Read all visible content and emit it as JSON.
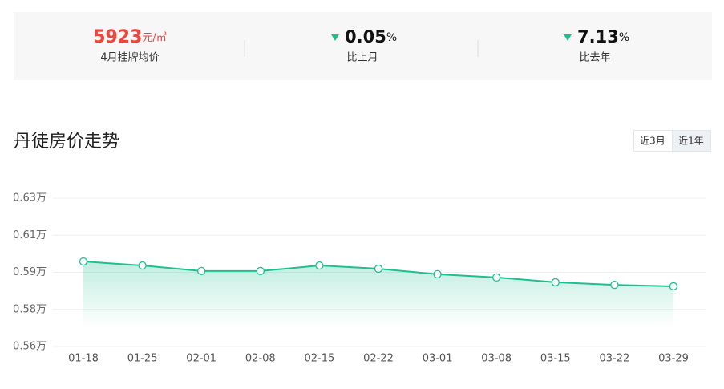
{
  "stats": [
    {
      "value": 5923,
      "unit": "元/㎡",
      "label": "4月挂牌均价"
    },
    {
      "value": 0.05,
      "unit": "%",
      "label": "比上月"
    },
    {
      "value": 7.13,
      "unit": "%",
      "label": "比去年"
    }
  ],
  "section_title": "丹徒房价走势",
  "range_buttons": [
    "近3月",
    "近1年"
  ],
  "chart_data": {
    "type": "line",
    "color": "#1cc08e",
    "grid": true,
    "categories": [
      "01-18",
      "01-25",
      "02-01",
      "02-08",
      "02-15",
      "02-22",
      "03-01",
      "03-08",
      "03-15",
      "03-22",
      "03-29"
    ],
    "values": [
      0.6001,
      0.5982,
      0.5956,
      0.5956,
      0.5982,
      0.5967,
      0.5941,
      0.5926,
      0.5903,
      0.5891,
      0.5884
    ],
    "ylim": [
      0.56,
      0.63
    ],
    "yticks": [
      {
        "value": 0.56,
        "label": "0.56万"
      },
      {
        "value": 0.5775,
        "label": "0.58万"
      },
      {
        "value": 0.595,
        "label": "0.59万"
      },
      {
        "value": 0.6125,
        "label": "0.61万"
      },
      {
        "value": 0.63,
        "label": "0.63万"
      }
    ]
  }
}
